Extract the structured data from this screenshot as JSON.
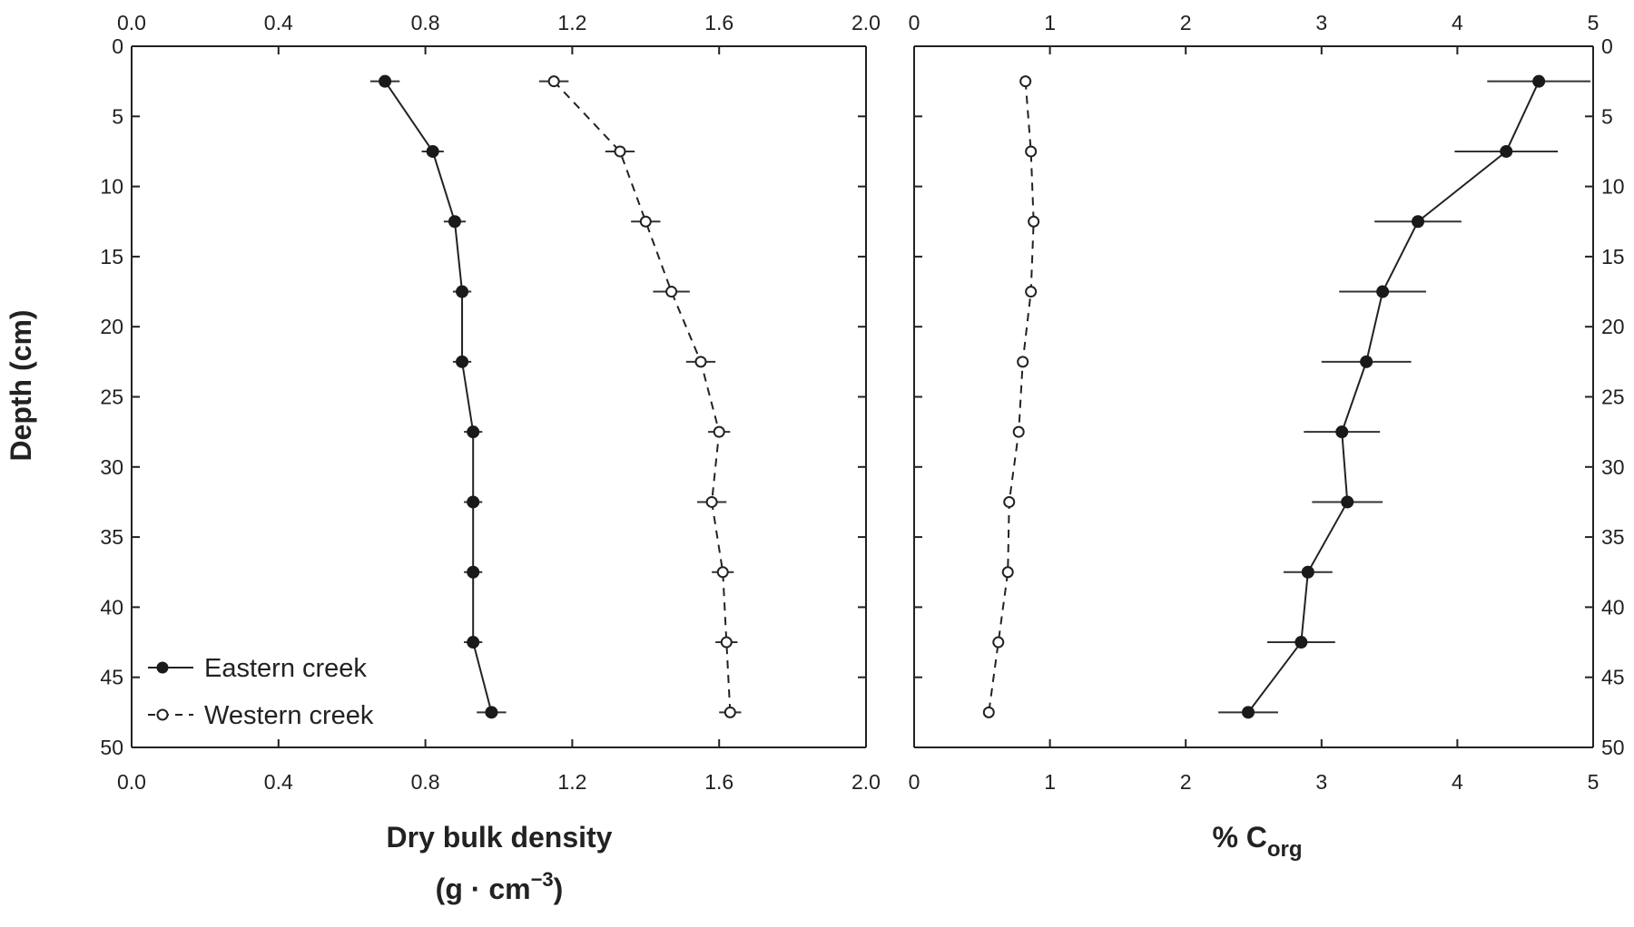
{
  "chart_data": [
    {
      "type": "line",
      "title": "",
      "ylabel": "Depth (cm)",
      "xlabel": "Dry bulk density",
      "xlabel_unit": "(g · cm",
      "xlabel_unit_exp": "−3",
      "xlabel_unit_close": ")",
      "xlim": [
        0.0,
        2.0
      ],
      "ylim": [
        0,
        50
      ],
      "y_inverted": true,
      "x_ticks": [
        "0.0",
        "0.4",
        "0.8",
        "1.2",
        "1.6",
        "2.0"
      ],
      "y_ticks": [
        "0",
        "5",
        "10",
        "15",
        "20",
        "25",
        "30",
        "35",
        "40",
        "45",
        "50"
      ],
      "grid": false,
      "legend": "bottom-left",
      "depth": [
        2.5,
        7.5,
        12.5,
        17.5,
        22.5,
        27.5,
        32.5,
        37.5,
        42.5,
        47.5
      ],
      "series": [
        {
          "name": "Eastern creek",
          "marker": "filled-circle",
          "line": "solid",
          "values": [
            0.69,
            0.82,
            0.88,
            0.9,
            0.9,
            0.93,
            0.93,
            0.93,
            0.93,
            0.98
          ],
          "errors": [
            0.04,
            0.03,
            0.03,
            0.025,
            0.025,
            0.025,
            0.025,
            0.025,
            0.025,
            0.04
          ]
        },
        {
          "name": "Western creek",
          "marker": "open-circle",
          "line": "dashed",
          "values": [
            1.15,
            1.33,
            1.4,
            1.47,
            1.55,
            1.6,
            1.58,
            1.61,
            1.62,
            1.63
          ],
          "errors": [
            0.04,
            0.04,
            0.04,
            0.05,
            0.04,
            0.03,
            0.04,
            0.03,
            0.03,
            0.03
          ]
        }
      ]
    },
    {
      "type": "line",
      "title": "",
      "xlabel": "% C",
      "xlabel_sub": "org",
      "xlim": [
        0,
        5
      ],
      "ylim": [
        0,
        50
      ],
      "y_inverted": true,
      "x_ticks": [
        "0",
        "1",
        "2",
        "3",
        "4",
        "5"
      ],
      "y_ticks": [
        "0",
        "5",
        "10",
        "15",
        "20",
        "25",
        "30",
        "35",
        "40",
        "45",
        "50"
      ],
      "grid": false,
      "depth": [
        2.5,
        7.5,
        12.5,
        17.5,
        22.5,
        27.5,
        32.5,
        37.5,
        42.5,
        47.5
      ],
      "series": [
        {
          "name": "Eastern creek",
          "marker": "filled-circle",
          "line": "solid",
          "values": [
            4.6,
            4.36,
            3.71,
            3.45,
            3.33,
            3.15,
            3.19,
            2.9,
            2.85,
            2.46
          ],
          "errors": [
            0.38,
            0.38,
            0.32,
            0.32,
            0.33,
            0.28,
            0.26,
            0.18,
            0.25,
            0.22
          ]
        },
        {
          "name": "Western creek",
          "marker": "open-circle",
          "line": "dashed",
          "values": [
            0.82,
            0.86,
            0.88,
            0.86,
            0.8,
            0.77,
            0.7,
            0.69,
            0.62,
            0.55
          ],
          "errors": [
            0.0,
            0.0,
            0.0,
            0.0,
            0.0,
            0.0,
            0.0,
            0.0,
            0.0,
            0.0
          ]
        }
      ]
    }
  ],
  "colors": {
    "axis": "#222222",
    "eastern_marker": "#1a1a1a",
    "western_marker_fill": "#ffffff",
    "error_bar": "#333333"
  }
}
